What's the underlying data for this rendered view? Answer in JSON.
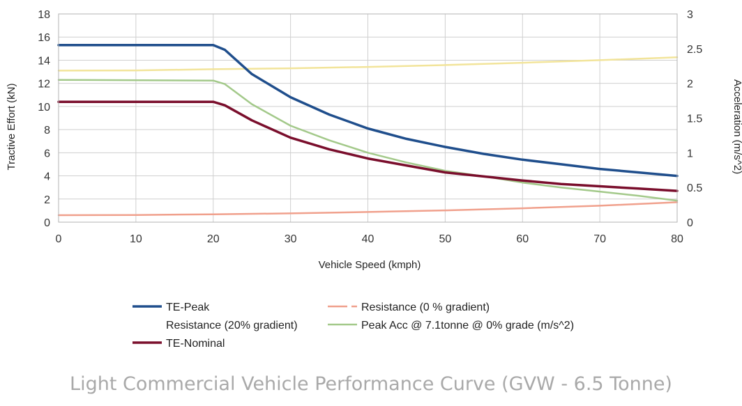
{
  "chart_data": {
    "type": "line",
    "title": "Light Commercial Vehicle Performance Curve (GVW - 6.5 Tonne)",
    "xlabel": "Vehicle Speed (kmph)",
    "ylabel": "Tractive Effort (kN)",
    "y2label": "Acceleration (m/s^2)",
    "xlim": [
      0,
      80
    ],
    "ylim": [
      0,
      18
    ],
    "y2lim": [
      0,
      3
    ],
    "x_ticks": [
      "0",
      "10",
      "20",
      "30",
      "40",
      "50",
      "60",
      "70",
      "80"
    ],
    "y_ticks": [
      "0",
      "2",
      "4",
      "6",
      "8",
      "10",
      "12",
      "14",
      "16",
      "18"
    ],
    "y2_ticks": [
      "0",
      "0.5",
      "1",
      "1.5",
      "2",
      "2.5",
      "3"
    ],
    "grid": true,
    "legend_position": "bottom",
    "series": [
      {
        "name": "TE-Peak",
        "color": "#1f4e8c",
        "axis": "left",
        "legend_show_marker": true,
        "x": [
          0,
          20,
          21.5,
          25,
          30,
          35,
          40,
          45,
          50,
          55,
          60,
          65,
          70,
          75,
          80
        ],
        "y": [
          15.3,
          15.3,
          14.9,
          12.8,
          10.8,
          9.3,
          8.1,
          7.2,
          6.5,
          5.9,
          5.4,
          5.0,
          4.6,
          4.3,
          4.0
        ]
      },
      {
        "name": "Resistance (0 % gradient)",
        "color": "#f0a08c",
        "axis": "left",
        "legend_show_marker": true,
        "x": [
          0,
          10,
          20,
          30,
          40,
          50,
          60,
          70,
          80
        ],
        "y": [
          0.6,
          0.62,
          0.68,
          0.76,
          0.88,
          1.02,
          1.2,
          1.42,
          1.72
        ]
      },
      {
        "name": "Resistance  (20% gradient)",
        "color": "#f2e49a",
        "axis": "left",
        "legend_show_marker": false,
        "x": [
          0,
          10,
          20,
          30,
          40,
          50,
          60,
          70,
          80
        ],
        "y": [
          13.1,
          13.12,
          13.22,
          13.3,
          13.42,
          13.58,
          13.78,
          14.0,
          14.25
        ]
      },
      {
        "name": "Peak Acc @ 7.1tonne @ 0% grade (m/s^2)",
        "color": "#a3c98a",
        "axis": "right",
        "legend_show_marker": true,
        "x": [
          0,
          20,
          21.5,
          25,
          30,
          35,
          40,
          45,
          50,
          55,
          60,
          65,
          70,
          75,
          80
        ],
        "y": [
          2.05,
          2.04,
          1.99,
          1.7,
          1.39,
          1.18,
          1.0,
          0.86,
          0.74,
          0.66,
          0.57,
          0.5,
          0.44,
          0.38,
          0.31
        ]
      },
      {
        "name": "TE-Nominal",
        "color": "#7a0e2c",
        "axis": "left",
        "legend_show_marker": true,
        "x": [
          0,
          20,
          21.5,
          25,
          30,
          35,
          40,
          45,
          50,
          55,
          60,
          65,
          70,
          75,
          80
        ],
        "y": [
          10.4,
          10.4,
          10.1,
          8.8,
          7.3,
          6.3,
          5.5,
          4.9,
          4.3,
          3.95,
          3.6,
          3.3,
          3.1,
          2.9,
          2.7
        ]
      }
    ]
  }
}
